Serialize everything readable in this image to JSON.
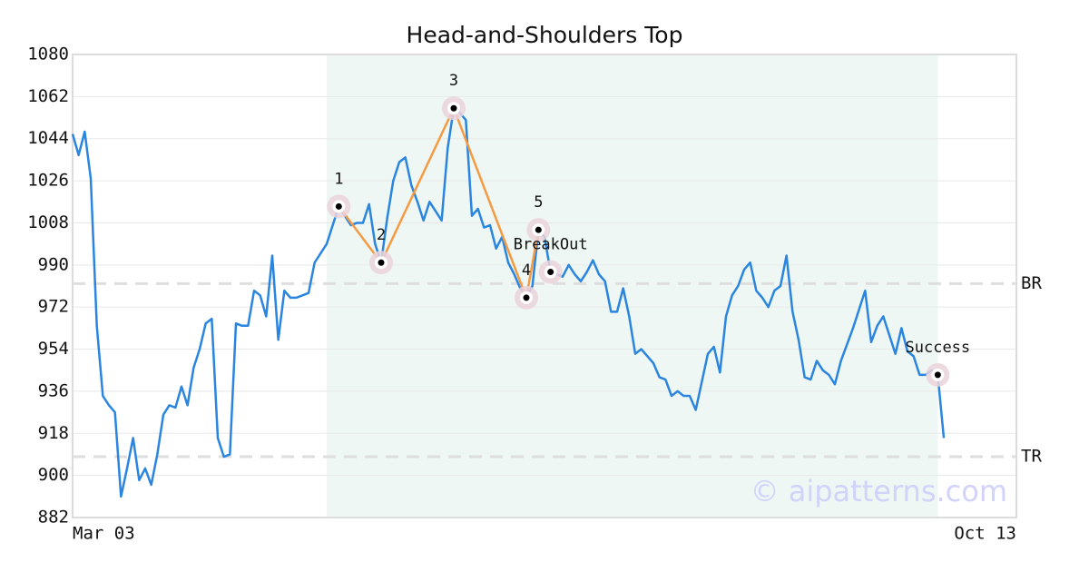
{
  "chart_data": {
    "type": "line",
    "title": "Head-and-Shoulders Top",
    "color": "#2a85e0",
    "x": [
      0,
      1,
      2,
      3,
      4,
      5,
      6,
      7,
      8,
      9,
      10,
      11,
      12,
      13,
      14,
      15,
      16,
      17,
      18,
      19,
      20,
      21,
      22,
      23,
      24,
      25,
      26,
      27,
      28,
      29,
      30,
      31,
      32,
      33,
      34,
      35,
      36,
      37,
      38,
      39,
      40,
      41,
      42,
      43,
      44,
      45,
      46,
      47,
      48,
      49,
      50,
      51,
      52,
      53,
      54,
      55,
      56,
      57,
      58,
      59,
      60,
      61,
      62,
      63,
      64,
      65,
      66,
      67,
      68,
      69,
      70,
      71,
      72,
      73,
      74,
      75,
      76,
      77,
      78,
      79,
      80,
      81,
      82,
      83,
      84,
      85,
      86,
      87,
      88,
      89,
      90,
      91,
      92,
      93,
      94,
      95,
      96,
      97,
      98,
      99,
      100,
      101,
      102,
      103,
      104,
      105,
      106,
      107,
      108,
      109,
      110,
      111,
      112,
      113,
      114,
      115,
      116,
      117,
      118,
      119,
      120,
      121,
      122,
      123,
      124,
      125,
      126,
      127,
      128,
      129,
      130,
      131,
      132,
      133,
      134,
      135,
      136,
      137,
      138,
      139,
      140,
      141,
      142,
      143,
      144
    ],
    "values": [
      1046,
      1037,
      1047,
      1027,
      964,
      934,
      930,
      927,
      891,
      903,
      916,
      898,
      903,
      896,
      909,
      926,
      930,
      929,
      938,
      930,
      946,
      954,
      965,
      967,
      916,
      908,
      909,
      965,
      964,
      964,
      979,
      977,
      968,
      994,
      958,
      979,
      976,
      976,
      977,
      978,
      991,
      995,
      999,
      1007,
      1015,
      1011,
      1007,
      1008,
      1008,
      1016,
      999,
      991,
      1010,
      1026,
      1034,
      1036,
      1024,
      1017,
      1009,
      1017,
      1013,
      1009,
      1040,
      1057,
      1055,
      1052,
      1011,
      1014,
      1006,
      1007,
      997,
      1002,
      991,
      986,
      980,
      976,
      981,
      1005,
      1002,
      987,
      986,
      985,
      990,
      986,
      983,
      987,
      992,
      986,
      983,
      970,
      970,
      980,
      968,
      952,
      954,
      951,
      948,
      942,
      941,
      934,
      936,
      934,
      934,
      928,
      940,
      952,
      955,
      944,
      968,
      977,
      981,
      988,
      991,
      979,
      976,
      972,
      979,
      981,
      994,
      970,
      958,
      942,
      941,
      949,
      945,
      943,
      939,
      949,
      956,
      963,
      971,
      979,
      957,
      964,
      968,
      960,
      952,
      963,
      953,
      951,
      943,
      943,
      945,
      943,
      916
    ],
    "xlim": [
      0,
      156
    ],
    "xticks": [
      {
        "value": 0,
        "label": "Mar 03"
      },
      {
        "value": 156,
        "label": "Oct 13"
      }
    ],
    "ylim": [
      882,
      1080
    ],
    "yticks": [
      882,
      900,
      918,
      936,
      954,
      972,
      990,
      1008,
      1026,
      1044,
      1062,
      1080
    ],
    "grid": true,
    "highlight": {
      "x": [
        42,
        143
      ],
      "color": "#eef7f3"
    },
    "pattern": {
      "x": [
        44,
        51,
        63,
        75,
        77
      ],
      "values": [
        1015,
        991,
        1057,
        976,
        1005
      ],
      "labels": [
        "1",
        "2",
        "3",
        "4",
        "5"
      ],
      "color": "#f59a42"
    },
    "signals": [
      {
        "label": "BreakOut",
        "x": 79,
        "value": 987
      },
      {
        "label": "Success",
        "x": 143,
        "value": 943
      }
    ],
    "hlines": [
      {
        "label": "BR",
        "value": 982
      },
      {
        "label": "TR",
        "value": 908
      }
    ],
    "watermark": "© aipatterns.com"
  }
}
